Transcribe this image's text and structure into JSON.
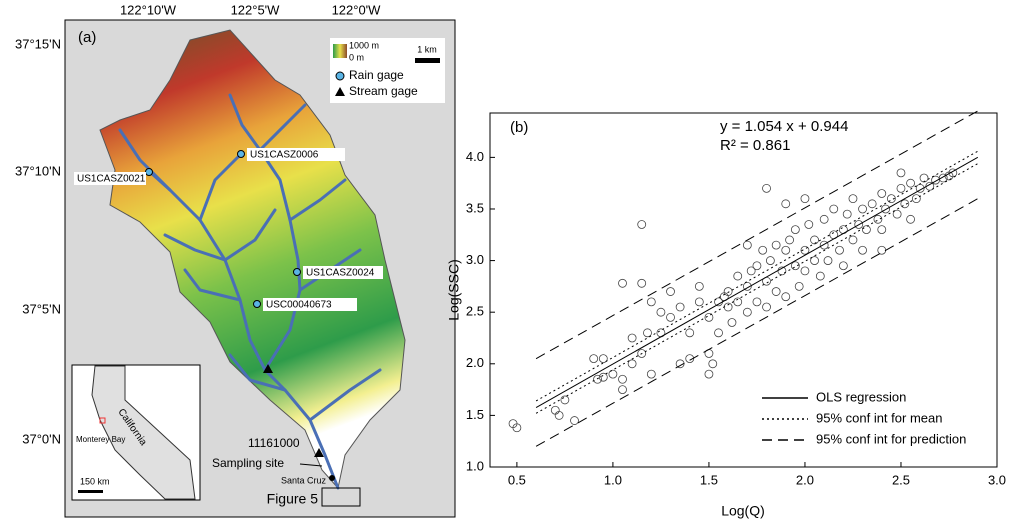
{
  "map": {
    "panel": "(a)",
    "lon_labels": [
      "122°10'W",
      "122°5'W",
      "122°0'W"
    ],
    "lat_labels": [
      "37°15'N",
      "37°10'N",
      "37°5'N",
      "37°0'N"
    ],
    "legend": {
      "elev_high": "1000 m",
      "elev_low": "0 m",
      "scale": "1 km",
      "rain_gage": "Rain gage",
      "stream_gage": "Stream gage"
    },
    "stations": [
      "US1CASZ0006",
      "US1CASZ0021",
      "US1CASZ0024",
      "USC00040673"
    ],
    "stream_gage_id": "11161000",
    "sampling_site": "Sampling site",
    "city": "Santa Cruz",
    "figure_ref": "Figure 5",
    "inset": {
      "state": "California",
      "bay": "Monterey Bay",
      "scale": "150 km"
    }
  },
  "chart_data": {
    "type": "scatter",
    "title": "(b)",
    "annotations": [
      "y = 1.054 x + 0.944",
      "R² = 0.861"
    ],
    "xlabel": "Log(Q)",
    "ylabel": "Log(SSC)",
    "xlim": [
      0.36,
      3.0
    ],
    "ylim": [
      1.0,
      4.43
    ],
    "xticks": [
      0.5,
      {
        "value": 1,
        "label": "1.0"
      },
      1.5,
      {
        "value": 2,
        "label": "2.0"
      },
      2.5,
      {
        "value": 3,
        "label": "3.0"
      }
    ],
    "yticks": [
      {
        "value": 1,
        "label": "1.0"
      },
      1.5,
      {
        "value": 2,
        "label": "2.0"
      },
      2.5,
      {
        "value": 3,
        "label": "3.0"
      },
      3.5,
      {
        "value": 4,
        "label": "4.0"
      }
    ],
    "legend": "lower right",
    "series": [
      {
        "type": "scatter",
        "color": "#444",
        "x": [
          0.48,
          0.5,
          1.15,
          1.15,
          1.05,
          1.8,
          2.77,
          1.7,
          0.7,
          0.75,
          0.72,
          0.8,
          0.95,
          0.9,
          0.92,
          0.95,
          1.0,
          1.05,
          1.05,
          1.1,
          1.1,
          1.15,
          1.18,
          1.2,
          1.2,
          1.25,
          1.25,
          1.3,
          1.3,
          1.35,
          1.35,
          1.4,
          1.4,
          1.45,
          1.45,
          1.5,
          1.5,
          1.5,
          1.55,
          1.55,
          1.6,
          1.6,
          1.62,
          1.65,
          1.65,
          1.7,
          1.7,
          1.72,
          1.75,
          1.75,
          1.78,
          1.8,
          1.8,
          1.82,
          1.85,
          1.85,
          1.88,
          1.9,
          1.9,
          1.92,
          1.95,
          1.95,
          1.97,
          2.0,
          2.0,
          2.02,
          2.05,
          2.05,
          2.08,
          2.1,
          2.1,
          2.12,
          2.15,
          2.15,
          2.18,
          2.2,
          2.2,
          2.22,
          2.25,
          2.25,
          2.28,
          2.3,
          2.3,
          2.32,
          2.35,
          2.38,
          2.4,
          2.4,
          2.42,
          2.45,
          2.48,
          2.5,
          2.52,
          2.55,
          2.58,
          2.6,
          2.62,
          2.65,
          2.68,
          2.72,
          2.75,
          2.5,
          2.55,
          2.4,
          2.0,
          1.9,
          1.58,
          1.52
        ],
        "values": [
          1.42,
          1.38,
          3.35,
          2.78,
          2.78,
          3.7,
          3.85,
          3.15,
          1.55,
          1.65,
          1.5,
          1.45,
          2.05,
          2.05,
          1.85,
          1.87,
          1.9,
          1.75,
          1.85,
          2.0,
          2.25,
          2.1,
          2.3,
          2.6,
          1.9,
          2.3,
          2.5,
          2.7,
          2.45,
          2.0,
          2.55,
          2.3,
          2.05,
          2.6,
          2.75,
          2.1,
          1.9,
          2.45,
          2.6,
          2.3,
          2.7,
          2.55,
          2.4,
          2.85,
          2.6,
          2.75,
          2.5,
          2.9,
          2.6,
          2.95,
          3.1,
          2.8,
          2.55,
          3.0,
          2.7,
          3.15,
          2.9,
          3.1,
          2.65,
          3.2,
          2.95,
          3.3,
          2.75,
          3.1,
          2.9,
          3.35,
          3.0,
          3.2,
          2.85,
          3.15,
          3.4,
          3.0,
          3.25,
          3.5,
          3.1,
          3.3,
          2.95,
          3.45,
          3.2,
          3.6,
          3.35,
          3.1,
          3.5,
          3.3,
          3.55,
          3.4,
          3.65,
          3.3,
          3.5,
          3.6,
          3.45,
          3.7,
          3.55,
          3.75,
          3.6,
          3.7,
          3.8,
          3.72,
          3.78,
          3.8,
          3.82,
          3.85,
          3.4,
          3.1,
          3.6,
          3.55,
          2.65,
          2.0
        ]
      },
      {
        "type": "line",
        "name": "OLS regression",
        "dash": "solid",
        "color": "#000",
        "x": [
          0.6,
          2.9
        ],
        "values": [
          1.576,
          4.001
        ]
      },
      {
        "type": "band",
        "name": "95% conf int for mean",
        "dash": "dotted",
        "color": "#000",
        "x": [
          0.6,
          2.9
        ],
        "values": [
          1.64,
          4.06
        ],
        "lower": [
          1.52,
          3.94
        ]
      },
      {
        "type": "band",
        "name": "95% conf int for prediction",
        "dash": "dashed",
        "color": "#000",
        "x": [
          0.6,
          2.9
        ],
        "values": [
          2.05,
          4.45
        ],
        "lower": [
          1.2,
          3.6
        ]
      }
    ]
  }
}
